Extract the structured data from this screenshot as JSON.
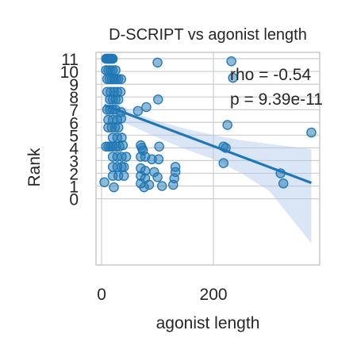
{
  "chart_data": {
    "type": "scatter",
    "title": "D-SCRIPT vs agonist length",
    "xlabel": "agonist length",
    "ylabel": "Rank",
    "xlim": [
      -10,
      390
    ],
    "ylim": [
      -5.2,
      11.5
    ],
    "x_ticks": [
      0,
      200
    ],
    "y_ticks": [
      0,
      1,
      2,
      3,
      4,
      5,
      6,
      7,
      8,
      9,
      10,
      11
    ],
    "grid": true,
    "annotations": [
      "rho = -0.54",
      "p = 9.39e-11"
    ],
    "colors": {
      "points": "#1f77b4",
      "line": "#1f77b4",
      "band": "#aec7e8",
      "grid": "#cccccc"
    },
    "points": [
      [
        8,
        11
      ],
      [
        10,
        11
      ],
      [
        12,
        11
      ],
      [
        14,
        11
      ],
      [
        16,
        11
      ],
      [
        18,
        11
      ],
      [
        20,
        11
      ],
      [
        100,
        10.7
      ],
      [
        232,
        10.8
      ],
      [
        8,
        10.1
      ],
      [
        12,
        10.1
      ],
      [
        16,
        10.1
      ],
      [
        20,
        10.1
      ],
      [
        25,
        10.1
      ],
      [
        10,
        9.4
      ],
      [
        14,
        9.4
      ],
      [
        18,
        9.4
      ],
      [
        22,
        9.4
      ],
      [
        26,
        9.4
      ],
      [
        30,
        9.4
      ],
      [
        35,
        9.4
      ],
      [
        235,
        9.5
      ],
      [
        10,
        8.4
      ],
      [
        16,
        8.4
      ],
      [
        22,
        8.4
      ],
      [
        28,
        8.4
      ],
      [
        34,
        8.4
      ],
      [
        15,
        7.8
      ],
      [
        20,
        7.8
      ],
      [
        25,
        7.8
      ],
      [
        30,
        7.8
      ],
      [
        101,
        7.8
      ],
      [
        10,
        7
      ],
      [
        15,
        7
      ],
      [
        20,
        7
      ],
      [
        25,
        7
      ],
      [
        35,
        6.8
      ],
      [
        65,
        6.9
      ],
      [
        80,
        7.2
      ],
      [
        12,
        6.2
      ],
      [
        20,
        6.2
      ],
      [
        28,
        6.2
      ],
      [
        35,
        6.3
      ],
      [
        225,
        5.8
      ],
      [
        12,
        5.6
      ],
      [
        18,
        5.6
      ],
      [
        24,
        5.6
      ],
      [
        30,
        5.6
      ],
      [
        20,
        4.8
      ],
      [
        28,
        4.8
      ],
      [
        36,
        4.8
      ],
      [
        375,
        5.2
      ],
      [
        8,
        4.1
      ],
      [
        12,
        4.1
      ],
      [
        16,
        4.1
      ],
      [
        20,
        4.1
      ],
      [
        26,
        4.1
      ],
      [
        32,
        4.1
      ],
      [
        38,
        4.2
      ],
      [
        70,
        4.2
      ],
      [
        72,
        4
      ],
      [
        74,
        3.8
      ],
      [
        103,
        4.1
      ],
      [
        218,
        4.1
      ],
      [
        222,
        4
      ],
      [
        20,
        3.3
      ],
      [
        28,
        3.3
      ],
      [
        36,
        3.3
      ],
      [
        44,
        3.3
      ],
      [
        70,
        3.3
      ],
      [
        78,
        3.3
      ],
      [
        90,
        3.1
      ],
      [
        102,
        3.1
      ],
      [
        218,
        2.8
      ],
      [
        20,
        2.5
      ],
      [
        28,
        2.5
      ],
      [
        36,
        2.5
      ],
      [
        40,
        2.5
      ],
      [
        70,
        2.4
      ],
      [
        78,
        2.2
      ],
      [
        94,
        2.1
      ],
      [
        132,
        2.1
      ],
      [
        132,
        2.5
      ],
      [
        20,
        1.8
      ],
      [
        30,
        1.8
      ],
      [
        40,
        1.8
      ],
      [
        70,
        1.8
      ],
      [
        78,
        1.6
      ],
      [
        100,
        1.7
      ],
      [
        130,
        1.6
      ],
      [
        320,
        2
      ],
      [
        5,
        1.3
      ],
      [
        22,
        0.9
      ],
      [
        70,
        1.2
      ],
      [
        76,
        0.9
      ],
      [
        85,
        1.1
      ],
      [
        108,
        1
      ],
      [
        128,
        1.1
      ],
      [
        325,
        1.2
      ]
    ],
    "fit_line": {
      "x": [
        5,
        375
      ],
      "y": [
        7.35,
        1.25
      ]
    },
    "ci_band": {
      "x": [
        5,
        50,
        100,
        150,
        200,
        250,
        300,
        375
      ],
      "upper": [
        8.3,
        6.9,
        6.1,
        5.5,
        5.0,
        4.6,
        4.3,
        3.9
      ],
      "lower": [
        6.4,
        5.8,
        4.8,
        3.9,
        3.1,
        2.0,
        0.6,
        -3.5
      ]
    }
  }
}
